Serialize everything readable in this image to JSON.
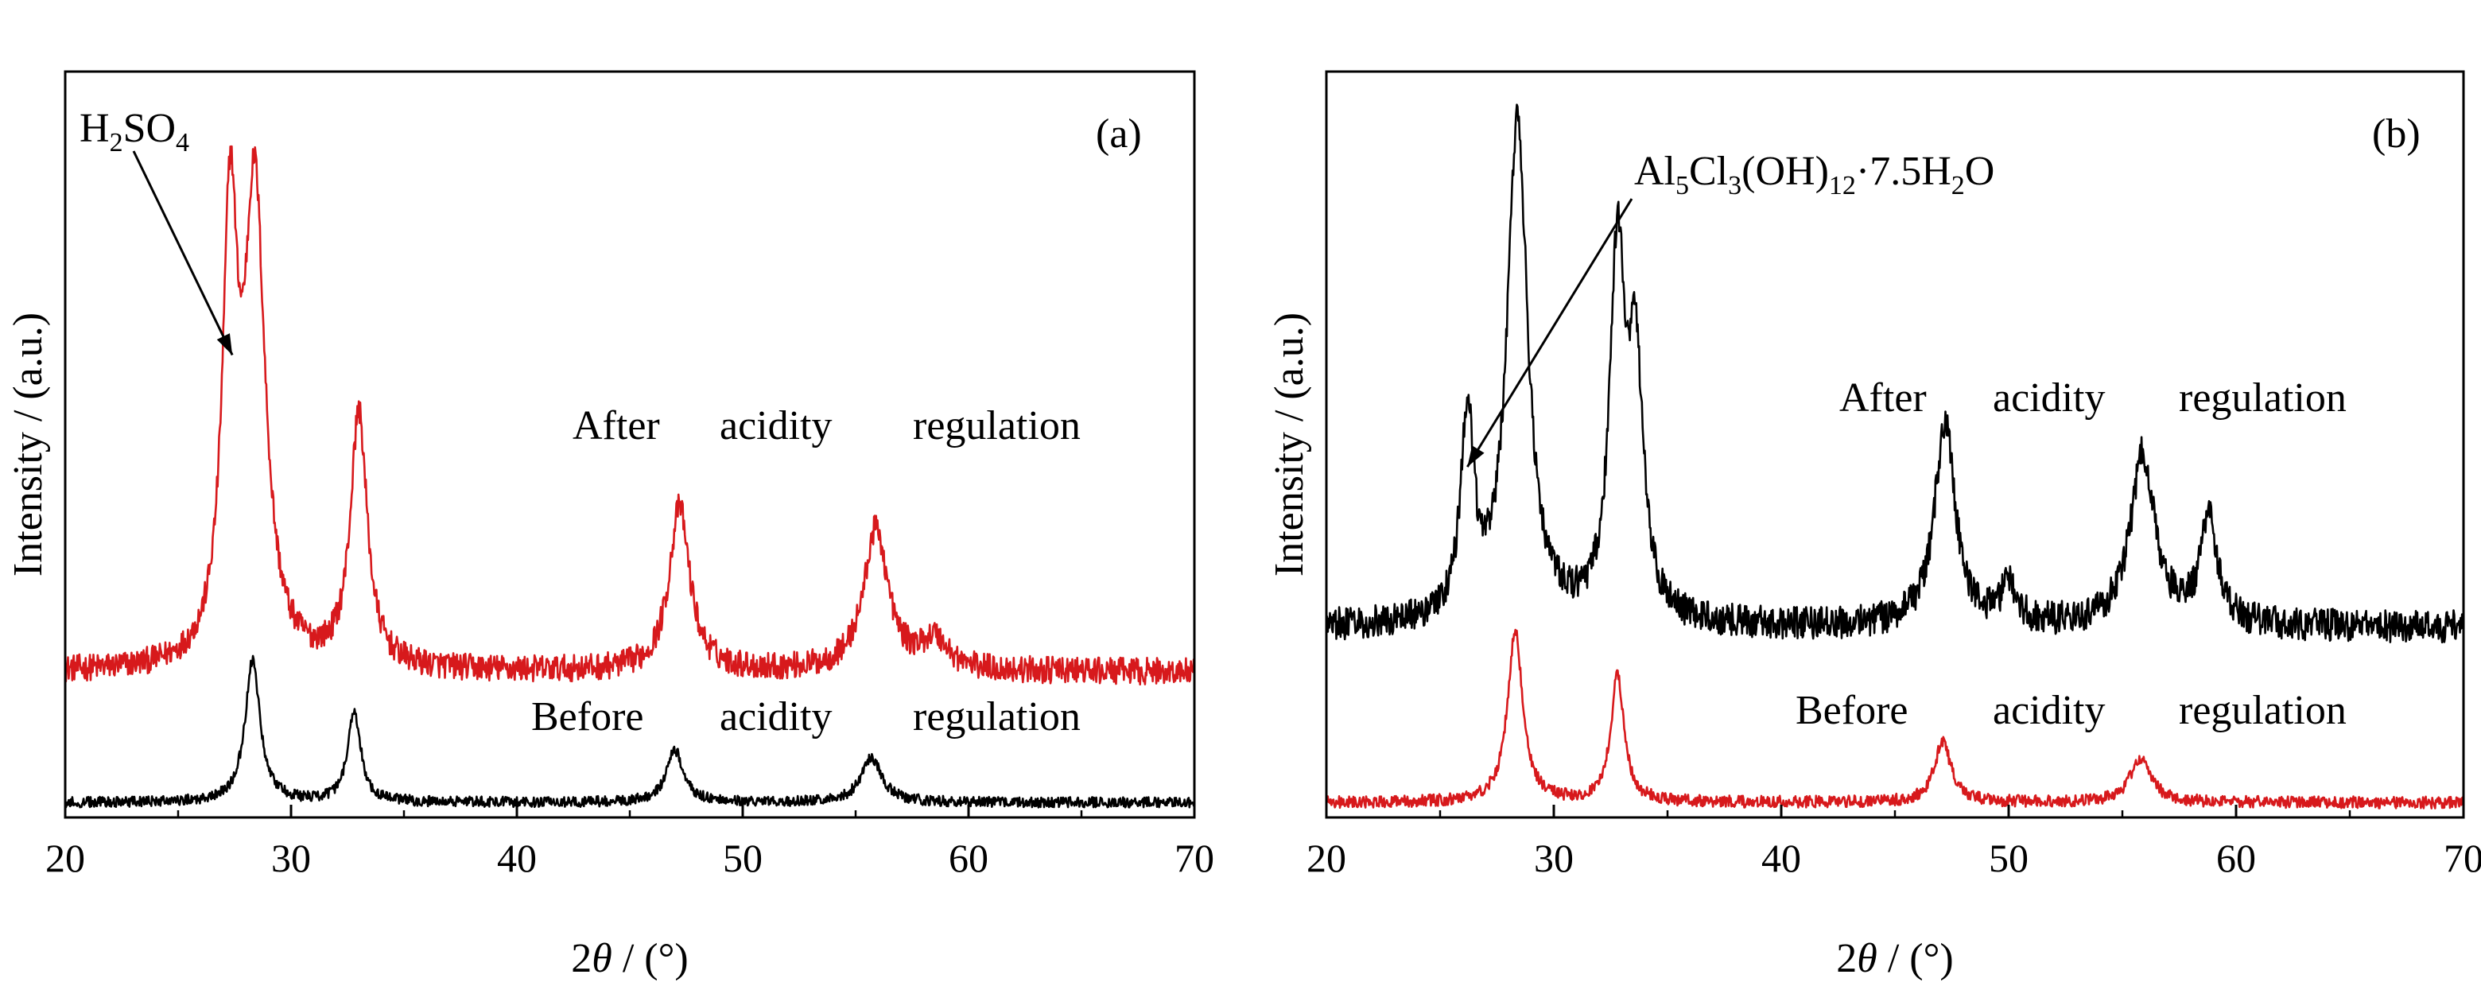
{
  "chart_data": [
    {
      "id": "a",
      "type": "line",
      "panel_label": "(a)",
      "xlabel_prefix": "2",
      "xlabel_theta": "θ",
      "xlabel_suffix": " / (°)",
      "ylabel": "Intensity / (a.u.)",
      "xlim": [
        20,
        70
      ],
      "xticks": [
        "20",
        "30",
        "40",
        "50",
        "60",
        "70"
      ],
      "y_ticks_shown": false,
      "series": [
        {
          "key": "after",
          "label_words": [
            "After",
            "acidity",
            "regulation"
          ],
          "color": "#d7191c",
          "baseline": 0.195,
          "noise": 0.018,
          "peaks": [
            [
              27.3,
              0.57,
              0.4
            ],
            [
              28.4,
              0.62,
              0.55
            ],
            [
              33.0,
              0.34,
              0.45
            ],
            [
              47.2,
              0.22,
              0.55
            ],
            [
              55.9,
              0.19,
              0.65
            ],
            [
              58.5,
              0.04,
              0.7
            ]
          ]
        },
        {
          "key": "before",
          "label_words": [
            "Before",
            "acidity",
            "regulation"
          ],
          "color": "#000000",
          "baseline": 0.02,
          "noise": 0.007,
          "peaks": [
            [
              28.3,
              0.19,
              0.4
            ],
            [
              32.8,
              0.12,
              0.35
            ],
            [
              47.0,
              0.07,
              0.45
            ],
            [
              55.7,
              0.06,
              0.55
            ]
          ]
        }
      ],
      "annotations": [
        {
          "text_parts": [
            [
              "H",
              "n"
            ],
            [
              "2",
              "sub"
            ],
            [
              "SO",
              "n"
            ],
            [
              "4",
              "sub"
            ]
          ],
          "points_to_x": 27.4
        }
      ]
    },
    {
      "id": "b",
      "type": "line",
      "panel_label": "(b)",
      "xlabel_prefix": "2",
      "xlabel_theta": "θ",
      "xlabel_suffix": " / (°)",
      "ylabel": "Intensity / (a.u.)",
      "xlim": [
        20,
        70
      ],
      "xticks": [
        "20",
        "30",
        "40",
        "50",
        "60",
        "70"
      ],
      "y_ticks_shown": false,
      "series": [
        {
          "key": "after",
          "label_words": [
            "After",
            "acidity",
            "regulation"
          ],
          "color": "#000000",
          "baseline": 0.255,
          "noise": 0.022,
          "peaks": [
            [
              26.2,
              0.27,
              0.35
            ],
            [
              28.4,
              0.67,
              0.55
            ],
            [
              32.8,
              0.48,
              0.4
            ],
            [
              33.6,
              0.32,
              0.4
            ],
            [
              47.2,
              0.27,
              0.55
            ],
            [
              50.0,
              0.05,
              0.4
            ],
            [
              55.9,
              0.23,
              0.65
            ],
            [
              58.8,
              0.14,
              0.45
            ]
          ]
        },
        {
          "key": "before",
          "label_words": [
            "Before",
            "acidity",
            "regulation"
          ],
          "color": "#d7191c",
          "baseline": 0.02,
          "noise": 0.008,
          "peaks": [
            [
              28.3,
              0.23,
              0.4
            ],
            [
              32.8,
              0.17,
              0.35
            ],
            [
              47.1,
              0.08,
              0.45
            ],
            [
              55.8,
              0.06,
              0.55
            ]
          ]
        }
      ],
      "annotations": [
        {
          "text_parts": [
            [
              "Al",
              "n"
            ],
            [
              "5",
              "sub"
            ],
            [
              "Cl",
              "n"
            ],
            [
              "3",
              "sub"
            ],
            [
              "(OH)",
              "n"
            ],
            [
              "12",
              "sub"
            ],
            [
              "·7.5H",
              "n"
            ],
            [
              "2",
              "sub"
            ],
            [
              "O",
              "n"
            ]
          ],
          "points_to_x": 26.2
        }
      ]
    }
  ]
}
